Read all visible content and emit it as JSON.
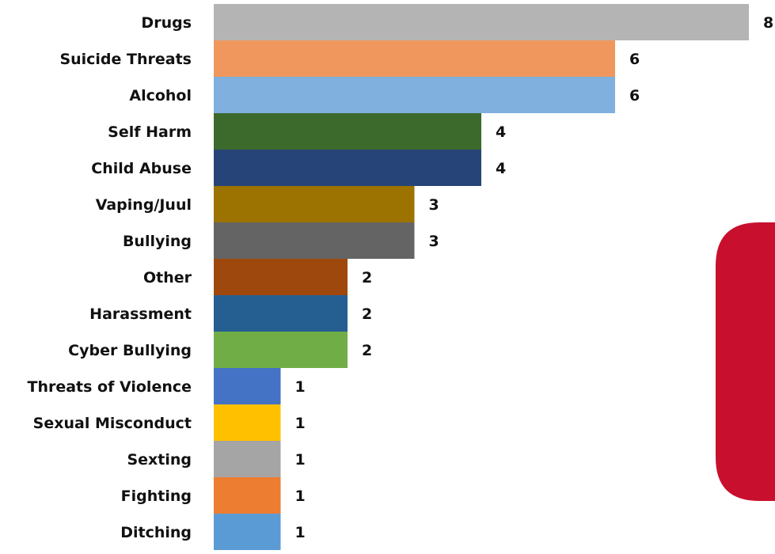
{
  "chart_data": {
    "type": "bar",
    "orientation": "horizontal",
    "title": "",
    "xlabel": "",
    "ylabel": "",
    "xlim": [
      0,
      8
    ],
    "grid": false,
    "legend": "none",
    "categories": [
      "Drugs",
      "Suicide Threats",
      "Alcohol",
      "Self Harm",
      "Child Abuse",
      "Vaping/Juul",
      "Bullying",
      "Other",
      "Harassment",
      "Cyber Bullying",
      "Threats of Violence",
      "Sexual Misconduct",
      "Sexting",
      "Fighting",
      "Ditching"
    ],
    "values": [
      8,
      6,
      6,
      4,
      4,
      3,
      3,
      2,
      2,
      2,
      1,
      1,
      1,
      1,
      1
    ],
    "value_labels": [
      "8",
      "6",
      "6",
      "4",
      "4",
      "3",
      "3",
      "2",
      "2",
      "2",
      "1",
      "1",
      "1",
      "1",
      "1"
    ],
    "colors": [
      "#b4b4b4",
      "#f0975d",
      "#7fb0de",
      "#3c6a2d",
      "#264478",
      "#9c7200",
      "#646464",
      "#9e480e",
      "#255e91",
      "#70ad47",
      "#4472c4",
      "#ffc000",
      "#a5a5a5",
      "#ed7d31",
      "#5b9bd5"
    ]
  },
  "decor": {
    "panel_color": "#c8102e"
  }
}
